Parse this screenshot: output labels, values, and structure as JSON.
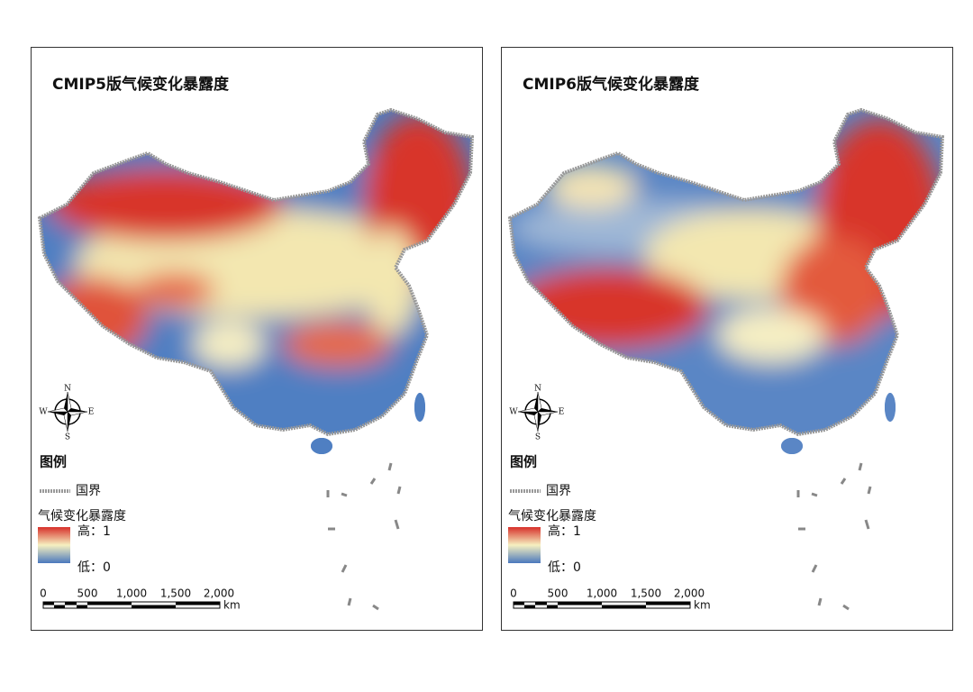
{
  "panels": [
    {
      "title": "CMIP5版气候变化暴露度",
      "compass": {
        "n": "N",
        "s": "S",
        "e": "E",
        "w": "W"
      },
      "legend": {
        "title": "图例",
        "border": "国界",
        "layer": "气候变化暴露度",
        "high": "高：1",
        "low": "低：0"
      },
      "scale": {
        "labels": [
          "0",
          "500",
          "1,000",
          "1,500",
          "2,000"
        ],
        "unit": "km"
      }
    },
    {
      "title": "CMIP6版气候变化暴露度",
      "compass": {
        "n": "N",
        "s": "S",
        "e": "E",
        "w": "W"
      },
      "legend": {
        "title": "图例",
        "border": "国界",
        "layer": "气候变化暴露度",
        "high": "高：1",
        "low": "低：0"
      },
      "scale": {
        "labels": [
          "0",
          "500",
          "1,000",
          "1,500",
          "2,000"
        ],
        "unit": "km"
      }
    }
  ]
}
